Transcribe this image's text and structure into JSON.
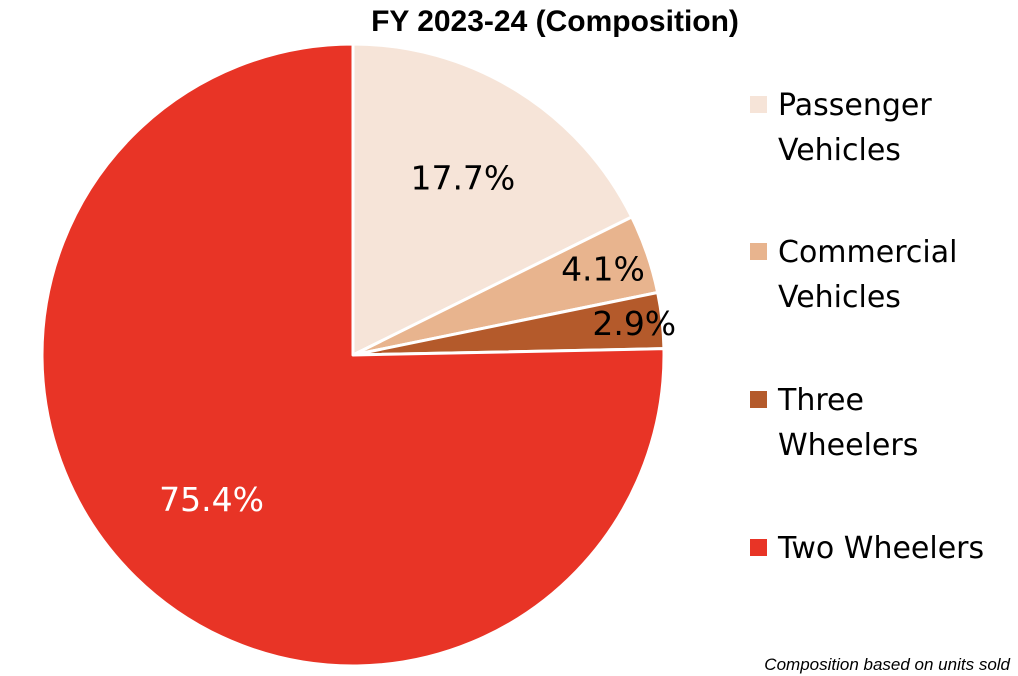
{
  "chart_data": {
    "type": "pie",
    "title": "FY 2023-24 (Composition)",
    "categories": [
      "Passenger Vehicles",
      "Commercial Vehicles",
      "Three Wheelers",
      "Two Wheelers"
    ],
    "values": [
      17.7,
      4.1,
      2.9,
      75.4
    ],
    "data_labels": [
      "17.7%",
      "4.1%",
      "2.9%",
      "75.4%"
    ],
    "colors": [
      "#F6E4D8",
      "#E8B48E",
      "#B45A2B",
      "#E83426"
    ],
    "label_colors": [
      "#000000",
      "#000000",
      "#000000",
      "#FFFFFF"
    ],
    "legend": {
      "placement": "right",
      "entries": [
        {
          "lines": [
            "Passenger",
            "Vehicles"
          ]
        },
        {
          "lines": [
            "Commercial",
            "Vehicles"
          ]
        },
        {
          "lines": [
            "Three",
            "Wheelers"
          ]
        },
        {
          "lines": [
            "Two Wheelers"
          ]
        }
      ]
    },
    "start_angle": "12 o'clock",
    "direction": "clockwise",
    "footnote": "Composition based on units sold"
  }
}
